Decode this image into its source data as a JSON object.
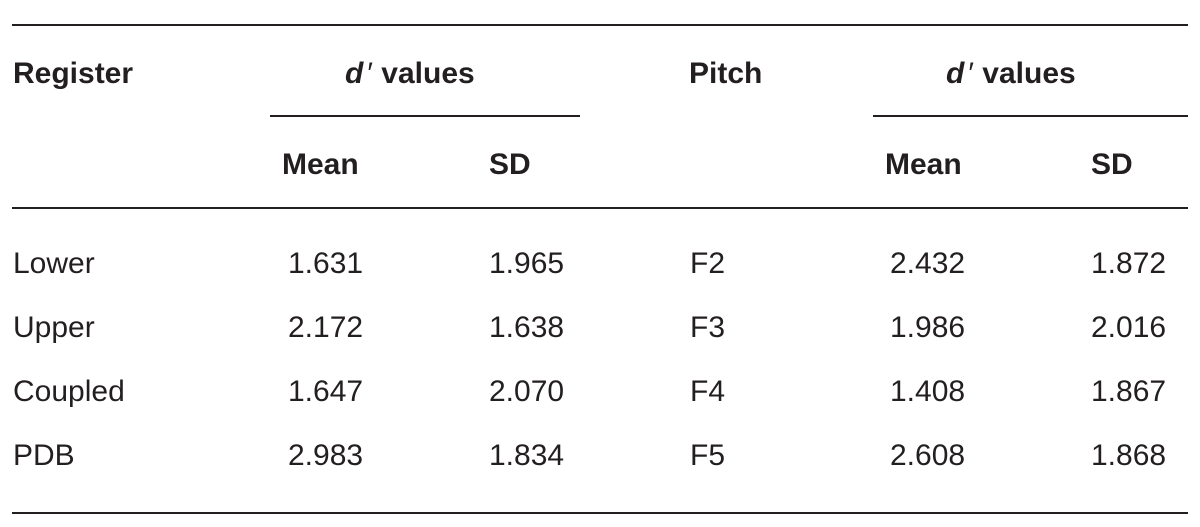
{
  "table": {
    "headers": {
      "register": "Register",
      "d_prime_symbol": "d",
      "d_prime_mark": "′",
      "values_word": "values",
      "pitch": "Pitch",
      "mean": "Mean",
      "sd": "SD"
    },
    "rows": [
      {
        "register": "Lower",
        "reg_mean": "1.631",
        "reg_sd": "1.965",
        "pitch": "F2",
        "pitch_mean": "2.432",
        "pitch_sd": "1.872"
      },
      {
        "register": "Upper",
        "reg_mean": "2.172",
        "reg_sd": "1.638",
        "pitch": "F3",
        "pitch_mean": "1.986",
        "pitch_sd": "2.016"
      },
      {
        "register": "Coupled",
        "reg_mean": "1.647",
        "reg_sd": "2.070",
        "pitch": "F4",
        "pitch_mean": "1.408",
        "pitch_sd": "1.867"
      },
      {
        "register": "PDB",
        "reg_mean": "2.983",
        "reg_sd": "1.834",
        "pitch": "F5",
        "pitch_mean": "2.608",
        "pitch_sd": "1.868"
      }
    ]
  }
}
